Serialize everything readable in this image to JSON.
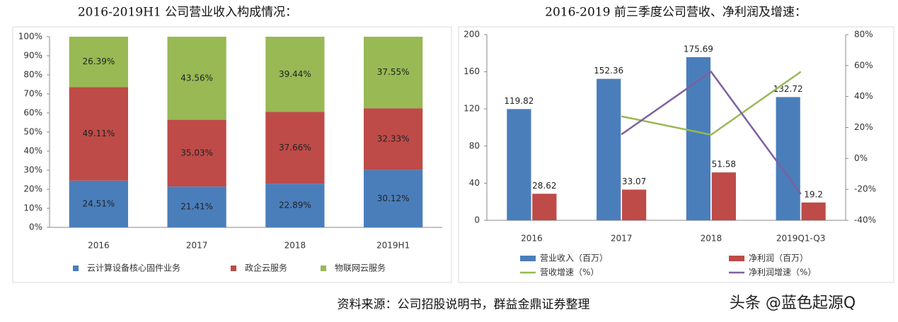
{
  "chart_data": [
    {
      "type": "bar",
      "stacked": true,
      "title": "2016-2019H1 公司营业收入构成情况：",
      "categories": [
        "2016",
        "2017",
        "2018",
        "2019H1"
      ],
      "series": [
        {
          "name": "云计算设备核心固件业务",
          "color": "#4a7ebb",
          "values": [
            24.51,
            21.41,
            22.89,
            30.12
          ],
          "value_labels": [
            "24.51%",
            "21.41%",
            "22.89%",
            "30.12%"
          ]
        },
        {
          "name": "政企云服务",
          "color": "#be4b48",
          "values": [
            49.11,
            35.03,
            37.66,
            32.33
          ],
          "value_labels": [
            "49.11%",
            "35.03%",
            "37.66%",
            "32.33%"
          ]
        },
        {
          "name": "物联网云服务",
          "color": "#98b954",
          "values": [
            26.39,
            43.56,
            39.44,
            37.55
          ],
          "value_labels": [
            "26.39%",
            "43.56%",
            "39.44%",
            "37.55%"
          ]
        }
      ],
      "ylim": [
        0,
        100
      ],
      "yticks": [
        {
          "value": 0,
          "label": "0%"
        },
        {
          "value": 10,
          "label": "10%"
        },
        {
          "value": 20,
          "label": "20%"
        },
        {
          "value": 30,
          "label": "30%"
        },
        {
          "value": 40,
          "label": "40%"
        },
        {
          "value": 50,
          "label": "50%"
        },
        {
          "value": 60,
          "label": "60%"
        },
        {
          "value": 70,
          "label": "70%"
        },
        {
          "value": 80,
          "label": "80%"
        },
        {
          "value": 90,
          "label": "90%"
        },
        {
          "value": 100,
          "label": "100%"
        }
      ],
      "grid": false
    },
    {
      "type": "bar",
      "stacked": false,
      "title": "2016-2019 前三季度公司营收、净利润及增速：",
      "categories": [
        "2016",
        "2017",
        "2018",
        "2019Q1-Q3"
      ],
      "series": [
        {
          "name": "营业收入（百万）",
          "color": "#4a7ebb",
          "values": [
            119.82,
            152.36,
            175.69,
            132.72
          ]
        },
        {
          "name": "净利润（百万）",
          "color": "#be4b48",
          "values": [
            28.62,
            33.07,
            51.58,
            19.2
          ]
        },
        {
          "name": "营收增速（%）",
          "type": "line",
          "axis": "y2",
          "color": "#98b954",
          "values": [
            null,
            27.2,
            15.3,
            56
          ]
        },
        {
          "name": "净利润增速（%）",
          "type": "line",
          "axis": "y2",
          "color": "#7d60a0",
          "values": [
            null,
            15.5,
            56,
            -23
          ]
        }
      ],
      "ylim": [
        0,
        200
      ],
      "yticks": [
        0,
        40,
        80,
        120,
        160,
        200
      ],
      "y2lim": [
        -40,
        80
      ],
      "y2ticks": [
        {
          "value": -40,
          "label": "-40%"
        },
        {
          "value": -20,
          "label": "-20%"
        },
        {
          "value": 0,
          "label": "0%"
        },
        {
          "value": 20,
          "label": "20%"
        },
        {
          "value": 40,
          "label": "40%"
        },
        {
          "value": 60,
          "label": "60%"
        },
        {
          "value": 80,
          "label": "80%"
        }
      ],
      "grid": false
    }
  ],
  "source": "资料来源：公司招股说明书，群益金鼎证券整理",
  "watermark": "头条 @蓝色起源Q"
}
